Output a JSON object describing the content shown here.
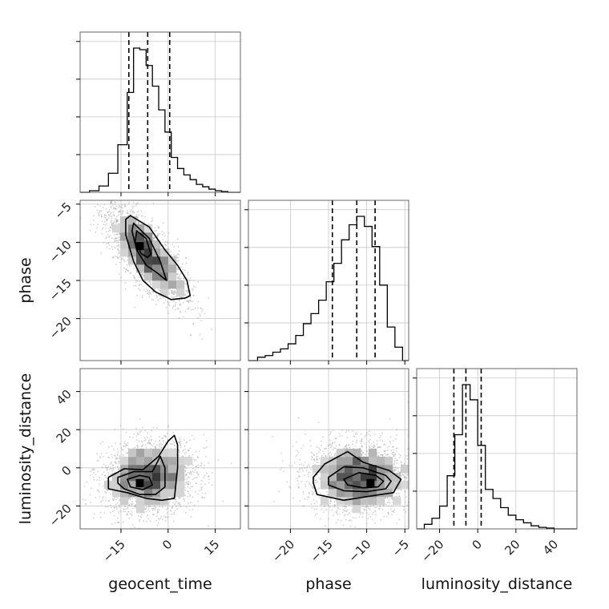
{
  "chart_data": {
    "type": "corner",
    "parameters": [
      "geocent_time",
      "phase",
      "luminosity_distance"
    ],
    "axis_labels": {
      "geocent_time": "geocent_time",
      "phase": "phase",
      "luminosity_distance": "luminosity_distance"
    },
    "ranges": {
      "geocent_time": [
        -28,
        23
      ],
      "phase": [
        -25.5,
        -4.5
      ],
      "luminosity_distance": [
        -32,
        52
      ]
    },
    "ticks": {
      "geocent_time": [
        -15,
        0,
        15
      ],
      "phase": [
        -20,
        -15,
        -10,
        -5
      ],
      "luminosity_distance": [
        -20,
        0,
        20,
        40
      ]
    },
    "tick_labels": {
      "geocent_time": [
        "−15",
        "0",
        "15"
      ],
      "phase": [
        "−20",
        "−15",
        "−10",
        "−5"
      ],
      "luminosity_distance": [
        "−20",
        "0",
        "20",
        "40"
      ]
    },
    "quantiles": {
      "geocent_time": [
        -12.5,
        -6.5,
        0.5
      ],
      "phase": [
        -14.5,
        -11.3,
        -8.9
      ],
      "luminosity_distance": [
        -12.5,
        -6.2,
        1.8
      ]
    },
    "histograms": {
      "geocent_time": {
        "bins": [
          -28,
          -25,
          -22,
          -19,
          -16,
          -13,
          -11,
          -9,
          -7,
          -5,
          -3,
          -1,
          1,
          3,
          5,
          7,
          9,
          11,
          13,
          15,
          17,
          19,
          23
        ],
        "counts": [
          0.0,
          0.01,
          0.04,
          0.12,
          0.3,
          0.63,
          0.91,
          0.9,
          0.8,
          0.67,
          0.52,
          0.38,
          0.22,
          0.15,
          0.11,
          0.08,
          0.05,
          0.035,
          0.02,
          0.01,
          0.005,
          0.0
        ]
      },
      "phase": {
        "bins": [
          -25.5,
          -24.3,
          -23.3,
          -22.3,
          -21.3,
          -20.3,
          -19.3,
          -18.3,
          -17.3,
          -16.3,
          -15.3,
          -14.3,
          -13.3,
          -12.3,
          -11.3,
          -10.3,
          -9.3,
          -8.3,
          -7.3,
          -6.3,
          -5.3,
          -4.5
        ],
        "counts": [
          0.0,
          0.02,
          0.03,
          0.05,
          0.07,
          0.1,
          0.15,
          0.22,
          0.28,
          0.36,
          0.47,
          0.58,
          0.72,
          0.81,
          0.86,
          0.8,
          0.68,
          0.45,
          0.2,
          0.08,
          0.0
        ]
      },
      "luminosity_distance": {
        "bins": [
          -32,
          -28,
          -24,
          -20,
          -16,
          -12,
          -8,
          -4,
          0,
          4,
          8,
          12,
          16,
          20,
          24,
          28,
          32,
          36,
          40,
          44,
          48,
          52
        ],
        "counts": [
          0.0,
          0.03,
          0.07,
          0.15,
          0.35,
          0.62,
          0.95,
          0.85,
          0.55,
          0.26,
          0.2,
          0.14,
          0.09,
          0.06,
          0.04,
          0.02,
          0.01,
          0.005,
          0.0,
          0.0,
          0.0
        ]
      }
    },
    "pairs": [
      {
        "x": "geocent_time",
        "y": "phase",
        "center": [
          -7,
          -11.5
        ],
        "spread": [
          6.0,
          3.0
        ],
        "correlation": -0.75,
        "peak": [
          -9.0,
          -10.5
        ],
        "contours": [
          [
            [
              -12,
              -6.5
            ],
            [
              -6,
              -8
            ],
            [
              -1,
              -11
            ],
            [
              3,
              -13
            ],
            [
              6,
              -15
            ],
            [
              7,
              -17
            ],
            [
              5.5,
              -17.3
            ],
            [
              1,
              -17.5
            ],
            [
              -4,
              -16.5
            ],
            [
              -8,
              -15
            ],
            [
              -11,
              -12.5
            ],
            [
              -13.5,
              -9
            ],
            [
              -13.5,
              -7
            ]
          ],
          [
            [
              -11,
              -7.5
            ],
            [
              -6,
              -9.5
            ],
            [
              -2.5,
              -12.5
            ],
            [
              -0.5,
              -15
            ],
            [
              -3.5,
              -14
            ],
            [
              -7,
              -13
            ],
            [
              -10,
              -11
            ],
            [
              -11.5,
              -8.5
            ]
          ],
          [
            [
              -10,
              -8.5
            ],
            [
              -7,
              -9.5
            ],
            [
              -5.5,
              -11.5
            ],
            [
              -6.5,
              -12
            ],
            [
              -8.5,
              -11.5
            ],
            [
              -10.5,
              -10
            ]
          ]
        ]
      },
      {
        "x": "geocent_time",
        "y": "luminosity_distance",
        "center": [
          -6,
          -5
        ],
        "spread": [
          7.0,
          9.0
        ],
        "correlation": 0.12,
        "peak": [
          -9.0,
          -8.0
        ],
        "contours": [
          [
            [
              -19,
              -5
            ],
            [
              -14,
              -0.5
            ],
            [
              -8,
              -1
            ],
            [
              -3,
              6
            ],
            [
              0,
              14
            ],
            [
              2,
              17
            ],
            [
              3,
              12
            ],
            [
              3,
              0
            ],
            [
              2,
              -16
            ],
            [
              -2,
              -17
            ],
            [
              -7,
              -16
            ],
            [
              -13,
              -13
            ],
            [
              -19,
              -11
            ]
          ],
          [
            [
              -16,
              -5
            ],
            [
              -11,
              -2
            ],
            [
              -5,
              -2
            ],
            [
              -2.5,
              6
            ],
            [
              -1,
              0
            ],
            [
              -1,
              -10
            ],
            [
              -4,
              -14
            ],
            [
              -9,
              -14
            ],
            [
              -14,
              -11
            ],
            [
              -16,
              -8
            ]
          ],
          [
            [
              -13,
              -6
            ],
            [
              -9,
              -4
            ],
            [
              -6,
              -5
            ],
            [
              -5,
              -9
            ],
            [
              -8,
              -11.5
            ],
            [
              -12,
              -10
            ]
          ]
        ]
      },
      {
        "x": "phase",
        "y": "luminosity_distance",
        "center": [
          -11,
          -5
        ],
        "spread": [
          3.2,
          9.0
        ],
        "correlation": -0.05,
        "peak": [
          -9.5,
          -8.0
        ],
        "contours": [
          [
            [
              -17,
              -5
            ],
            [
              -15.5,
              2
            ],
            [
              -12.5,
              8.5
            ],
            [
              -10.5,
              3
            ],
            [
              -7,
              -1.5
            ],
            [
              -5.5,
              -6
            ],
            [
              -6.5,
              -13
            ],
            [
              -9,
              -14.5
            ],
            [
              -13,
              -17
            ],
            [
              -16.5,
              -14
            ],
            [
              -17,
              -8
            ]
          ],
          [
            [
              -15,
              -5
            ],
            [
              -13,
              0.5
            ],
            [
              -10.5,
              0
            ],
            [
              -7.5,
              -4
            ],
            [
              -6.8,
              -7
            ],
            [
              -7.5,
              -11
            ],
            [
              -10,
              -12.5
            ],
            [
              -13,
              -12
            ],
            [
              -15,
              -9
            ]
          ],
          [
            [
              -13,
              -6
            ],
            [
              -11,
              -2.5
            ],
            [
              -8.8,
              -4
            ],
            [
              -7.8,
              -7
            ],
            [
              -8.5,
              -10
            ],
            [
              -10.5,
              -10.5
            ],
            [
              -12.5,
              -9
            ]
          ]
        ]
      }
    ]
  }
}
